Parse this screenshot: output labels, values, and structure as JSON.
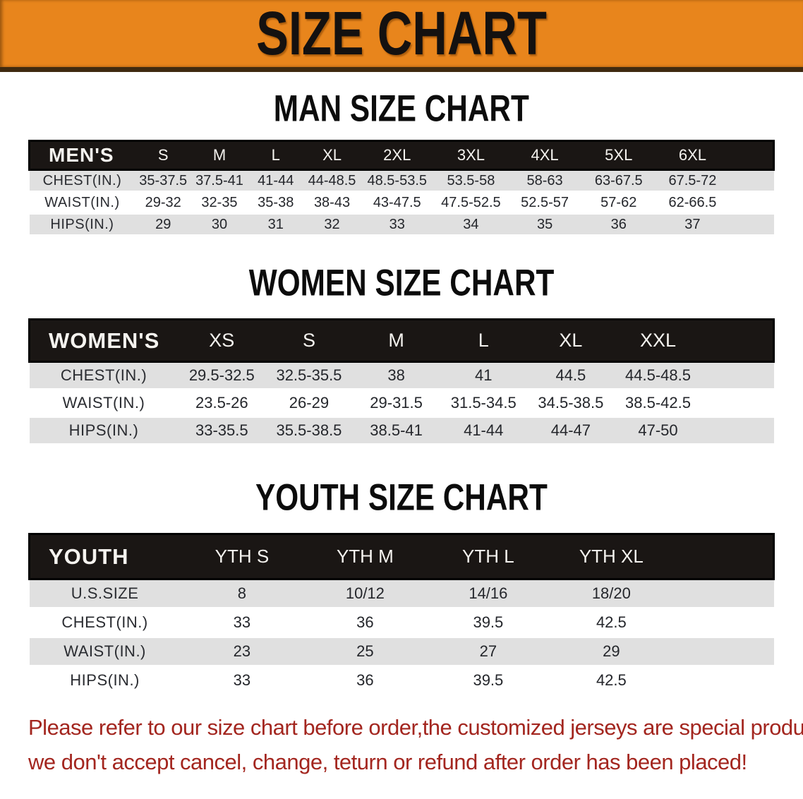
{
  "banner": {
    "title": "SIZE CHART",
    "bg_color": "#e8851c"
  },
  "sections": [
    {
      "heading": "MAN SIZE CHART",
      "table": {
        "label": "MEN'S",
        "sizes": [
          "S",
          "M",
          "L",
          "XL",
          "2XL",
          "3XL",
          "4XL",
          "5XL",
          "6XL"
        ],
        "rows": [
          {
            "label": "CHEST(IN.)",
            "values": [
              "35-37.5",
              "37.5-41",
              "41-44",
              "44-48.5",
              "48.5-53.5",
              "53.5-58",
              "58-63",
              "63-67.5",
              "67.5-72"
            ]
          },
          {
            "label": "WAIST(IN.)",
            "values": [
              "29-32",
              "32-35",
              "35-38",
              "38-43",
              "43-47.5",
              "47.5-52.5",
              "52.5-57",
              "57-62",
              "62-66.5"
            ]
          },
          {
            "label": "HIPS(IN.)",
            "values": [
              "29",
              "30",
              "31",
              "32",
              "33",
              "34",
              "35",
              "36",
              "37"
            ]
          }
        ]
      }
    },
    {
      "heading": "WOMEN SIZE CHART",
      "table": {
        "label": "WOMEN'S",
        "sizes": [
          "XS",
          "S",
          "M",
          "L",
          "XL",
          "XXL"
        ],
        "rows": [
          {
            "label": "CHEST(IN.)",
            "values": [
              "29.5-32.5",
              "32.5-35.5",
              "38",
              "41",
              "44.5",
              "44.5-48.5"
            ]
          },
          {
            "label": "WAIST(IN.)",
            "values": [
              "23.5-26",
              "26-29",
              "29-31.5",
              "31.5-34.5",
              "34.5-38.5",
              "38.5-42.5"
            ]
          },
          {
            "label": "HIPS(IN.)",
            "values": [
              "33-35.5",
              "35.5-38.5",
              "38.5-41",
              "41-44",
              "44-47",
              "47-50"
            ]
          }
        ]
      }
    },
    {
      "heading": "YOUTH SIZE CHART",
      "table": {
        "label": "YOUTH",
        "sizes": [
          "YTH S",
          "YTH M",
          "YTH L",
          "YTH XL"
        ],
        "rows": [
          {
            "label": "U.S.SIZE",
            "values": [
              "8",
              "10/12",
              "14/16",
              "18/20"
            ]
          },
          {
            "label": "CHEST(IN.)",
            "values": [
              "33",
              "36",
              "39.5",
              "42.5"
            ]
          },
          {
            "label": "WAIST(IN.)",
            "values": [
              "23",
              "25",
              "27",
              "29"
            ]
          },
          {
            "label": "HIPS(IN.)",
            "values": [
              "33",
              "36",
              "39.5",
              "42.5"
            ]
          }
        ]
      }
    }
  ],
  "disclaimer": {
    "line1": "Please refer to our size chart before order,the customized jerseys are special products,",
    "line2": "we don't accept cancel, change, teturn or refund after order has been placed!",
    "color": "#a3261f"
  },
  "chart_data": {
    "type": "table",
    "title": "SIZE CHART",
    "tables": [
      {
        "name": "MEN'S",
        "columns": [
          "S",
          "M",
          "L",
          "XL",
          "2XL",
          "3XL",
          "4XL",
          "5XL",
          "6XL"
        ],
        "rows": {
          "CHEST(IN.)": [
            "35-37.5",
            "37.5-41",
            "41-44",
            "44-48.5",
            "48.5-53.5",
            "53.5-58",
            "58-63",
            "63-67.5",
            "67.5-72"
          ],
          "WAIST(IN.)": [
            "29-32",
            "32-35",
            "35-38",
            "38-43",
            "43-47.5",
            "47.5-52.5",
            "52.5-57",
            "57-62",
            "62-66.5"
          ],
          "HIPS(IN.)": [
            "29",
            "30",
            "31",
            "32",
            "33",
            "34",
            "35",
            "36",
            "37"
          ]
        }
      },
      {
        "name": "WOMEN'S",
        "columns": [
          "XS",
          "S",
          "M",
          "L",
          "XL",
          "XXL"
        ],
        "rows": {
          "CHEST(IN.)": [
            "29.5-32.5",
            "32.5-35.5",
            "38",
            "41",
            "44.5",
            "44.5-48.5"
          ],
          "WAIST(IN.)": [
            "23.5-26",
            "26-29",
            "29-31.5",
            "31.5-34.5",
            "34.5-38.5",
            "38.5-42.5"
          ],
          "HIPS(IN.)": [
            "33-35.5",
            "35.5-38.5",
            "38.5-41",
            "41-44",
            "44-47",
            "47-50"
          ]
        }
      },
      {
        "name": "YOUTH",
        "columns": [
          "YTH S",
          "YTH M",
          "YTH L",
          "YTH XL"
        ],
        "rows": {
          "U.S.SIZE": [
            "8",
            "10/12",
            "14/16",
            "18/20"
          ],
          "CHEST(IN.)": [
            "33",
            "36",
            "39.5",
            "42.5"
          ],
          "WAIST(IN.)": [
            "23",
            "25",
            "27",
            "29"
          ],
          "HIPS(IN.)": [
            "33",
            "36",
            "39.5",
            "42.5"
          ]
        }
      }
    ]
  }
}
